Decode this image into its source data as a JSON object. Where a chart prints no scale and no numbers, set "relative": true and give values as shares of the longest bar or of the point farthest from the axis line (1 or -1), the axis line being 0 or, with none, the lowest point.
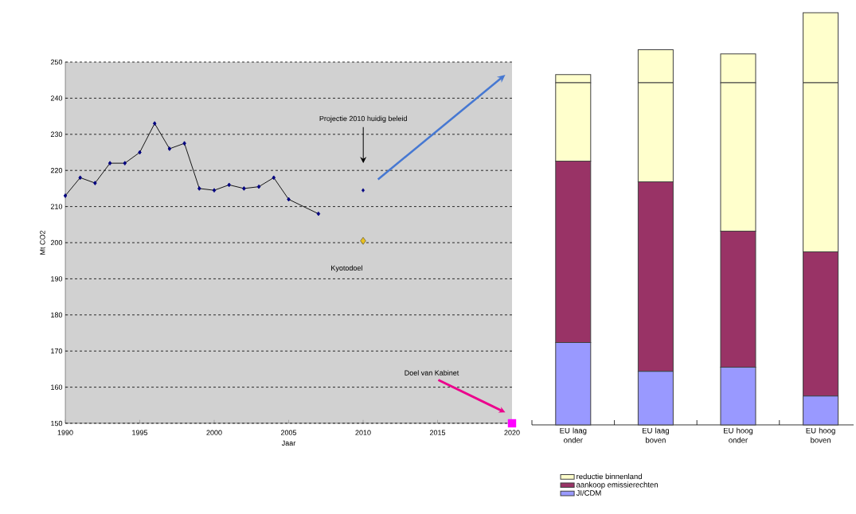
{
  "chart_data": [
    {
      "type": "line",
      "xlabel": "Jaar",
      "ylabel": "Mt CO2",
      "xlim": [
        1990,
        2020
      ],
      "ylim": [
        150,
        250
      ],
      "xticks": [
        1990,
        1995,
        2000,
        2005,
        2010,
        2015,
        2020
      ],
      "yticks": [
        150,
        160,
        170,
        180,
        190,
        200,
        210,
        220,
        230,
        240,
        250
      ],
      "grid": "y",
      "marker": "diamond",
      "series": [
        {
          "type": "line",
          "color": "#000080",
          "x": [
            1990,
            1991,
            1992,
            1993,
            1994,
            1995,
            1996,
            1997,
            1998,
            1999,
            2000,
            2001,
            2002,
            2003,
            2004,
            2005,
            2007
          ],
          "values": [
            213,
            218,
            216.5,
            222,
            222,
            225,
            233,
            226,
            227.5,
            215,
            214.5,
            216,
            215,
            215.5,
            218,
            212,
            208
          ]
        },
        {
          "type": "scatter",
          "color": "#000080",
          "x": [
            2010
          ],
          "values": [
            214.5
          ]
        },
        {
          "type": "scatter",
          "color": "#e8c020",
          "x": [
            2010
          ],
          "values": [
            200.5
          ]
        },
        {
          "type": "scatter",
          "color": "#ff00ff",
          "marker": "square",
          "x": [
            2020
          ],
          "values": [
            150
          ]
        }
      ],
      "annotations": [
        "Projectie 2010 huidig beleid",
        "Kyotodoel",
        "Doel van Kabinet"
      ]
    },
    {
      "type": "bar",
      "stacked": true,
      "relative": true,
      "legend": "bottom",
      "categories": [
        "EU laag onder",
        "EU laag boven",
        "EU hoog onder",
        "EU hoog boven"
      ],
      "series": [
        {
          "name": "JI/CDM",
          "color": "#9999ff",
          "values": [
            0.2,
            0.13,
            0.14,
            0.07
          ]
        },
        {
          "name": "aankoop emissierechten",
          "color": "#993366",
          "values": [
            0.44,
            0.46,
            0.33,
            0.35
          ]
        },
        {
          "name": "reductie binnenland",
          "color": "#ffffcc",
          "values": [
            0.19,
            0.24,
            0.36,
            0.41
          ]
        },
        {
          "color": "#ffffcc",
          "values": [
            0.02,
            0.08,
            0.07,
            0.17
          ]
        }
      ]
    }
  ]
}
